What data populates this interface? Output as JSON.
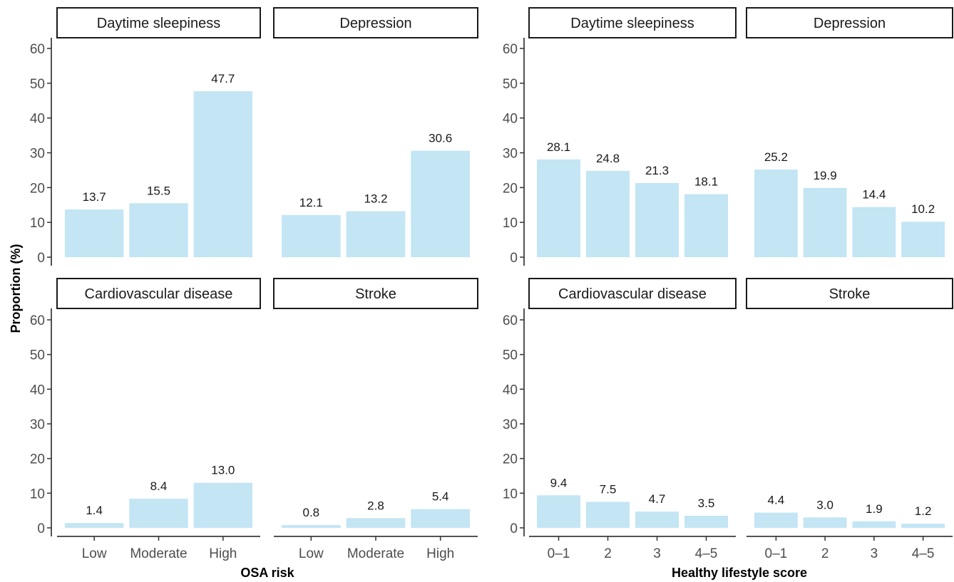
{
  "chart_data": [
    {
      "type": "bar",
      "xlabel": "OSA risk",
      "ylabel": "Proportion (%)",
      "ylim": [
        0,
        60
      ],
      "yticks": [
        0,
        10,
        20,
        30,
        40,
        50,
        60
      ],
      "categories": [
        "Low",
        "Moderate",
        "High"
      ],
      "bar_color": "#c3e5f4",
      "panels": [
        {
          "title": "Daytime sleepiness",
          "values": [
            13.7,
            15.5,
            47.7
          ],
          "labels": [
            "13.7",
            "15.5",
            "47.7"
          ]
        },
        {
          "title": "Depression",
          "values": [
            12.1,
            13.2,
            30.6
          ],
          "labels": [
            "12.1",
            "13.2",
            "30.6"
          ]
        },
        {
          "title": "Cardiovascular disease",
          "values": [
            1.4,
            8.4,
            13.0
          ],
          "labels": [
            "1.4",
            "8.4",
            "13.0"
          ]
        },
        {
          "title": "Stroke",
          "values": [
            0.8,
            2.8,
            5.4
          ],
          "labels": [
            "0.8",
            "2.8",
            "5.4"
          ]
        }
      ]
    },
    {
      "type": "bar",
      "xlabel": "Healthy lifestyle score",
      "ylabel": "",
      "ylim": [
        0,
        60
      ],
      "yticks": [
        0,
        10,
        20,
        30,
        40,
        50,
        60
      ],
      "categories": [
        "0–1",
        "2",
        "3",
        "4–5"
      ],
      "bar_color": "#c3e5f4",
      "panels": [
        {
          "title": "Daytime sleepiness",
          "values": [
            28.1,
            24.8,
            21.3,
            18.1
          ],
          "labels": [
            "28.1",
            "24.8",
            "21.3",
            "18.1"
          ]
        },
        {
          "title": "Depression",
          "values": [
            25.2,
            19.9,
            14.4,
            10.2
          ],
          "labels": [
            "25.2",
            "19.9",
            "14.4",
            "10.2"
          ]
        },
        {
          "title": "Cardiovascular disease",
          "values": [
            9.4,
            7.5,
            4.7,
            3.5
          ],
          "labels": [
            "9.4",
            "7.5",
            "4.7",
            "3.5"
          ]
        },
        {
          "title": "Stroke",
          "values": [
            4.4,
            3.0,
            1.9,
            1.2
          ],
          "labels": [
            "4.4",
            "3.0",
            "1.9",
            "1.2"
          ]
        }
      ]
    }
  ]
}
